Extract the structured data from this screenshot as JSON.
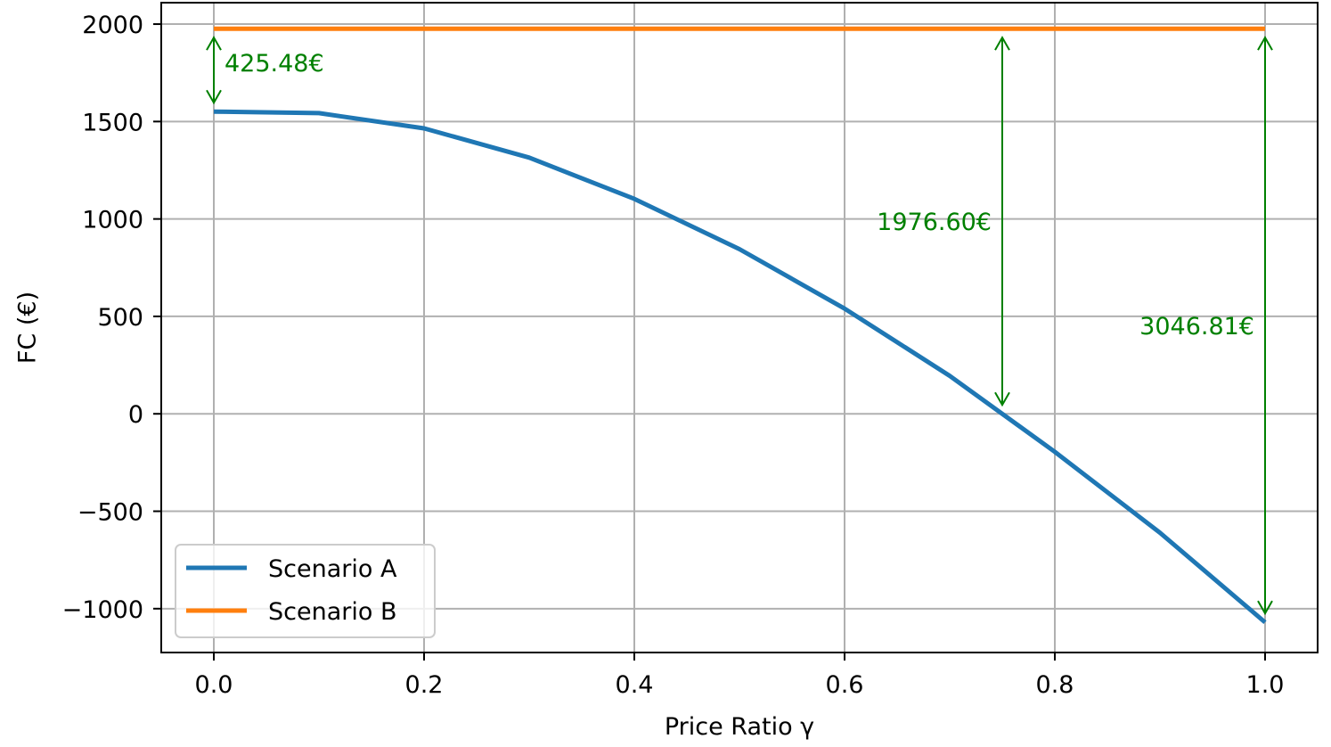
{
  "chart_data": {
    "type": "line",
    "xlabel": "Price Ratio γ",
    "ylabel": "FC (€)",
    "xlim": [
      -0.05,
      1.05
    ],
    "ylim": [
      -1225,
      2110
    ],
    "xticks": [
      0.0,
      0.2,
      0.4,
      0.6,
      0.8,
      1.0
    ],
    "xtick_labels": [
      "0.0",
      "0.2",
      "0.4",
      "0.6",
      "0.8",
      "1.0"
    ],
    "yticks": [
      -1000,
      -500,
      0,
      500,
      1000,
      1500,
      2000
    ],
    "ytick_labels": [
      "−1000",
      "−500",
      "0",
      "500",
      "1000",
      "1500",
      "2000"
    ],
    "grid": true,
    "legend_position": "lower-left",
    "series": [
      {
        "name": "Scenario A",
        "color": "#1f77b4",
        "x": [
          0.0,
          0.1,
          0.2,
          0.3,
          0.4,
          0.5,
          0.6,
          0.7,
          0.8,
          0.9,
          1.0
        ],
        "y": [
          1551,
          1543,
          1465,
          1315,
          1103,
          845,
          540,
          195,
          -195,
          -610,
          -1070
        ]
      },
      {
        "name": "Scenario B",
        "color": "#ff7f0e",
        "x": [
          0.0,
          1.0
        ],
        "y": [
          1976.6,
          1976.6
        ]
      }
    ],
    "annotations": [
      {
        "text": "425.48€",
        "x": 0.0,
        "y_from": 1976.6,
        "y_to": 1551,
        "color": "#008000",
        "label_side": "right"
      },
      {
        "text": "1976.60€",
        "x": 0.75,
        "y_from": 1976.6,
        "y_to": 0,
        "color": "#008000",
        "label_side": "left"
      },
      {
        "text": "3046.81€",
        "x": 1.0,
        "y_from": 1976.6,
        "y_to": -1070,
        "color": "#008000",
        "label_side": "left"
      }
    ]
  }
}
